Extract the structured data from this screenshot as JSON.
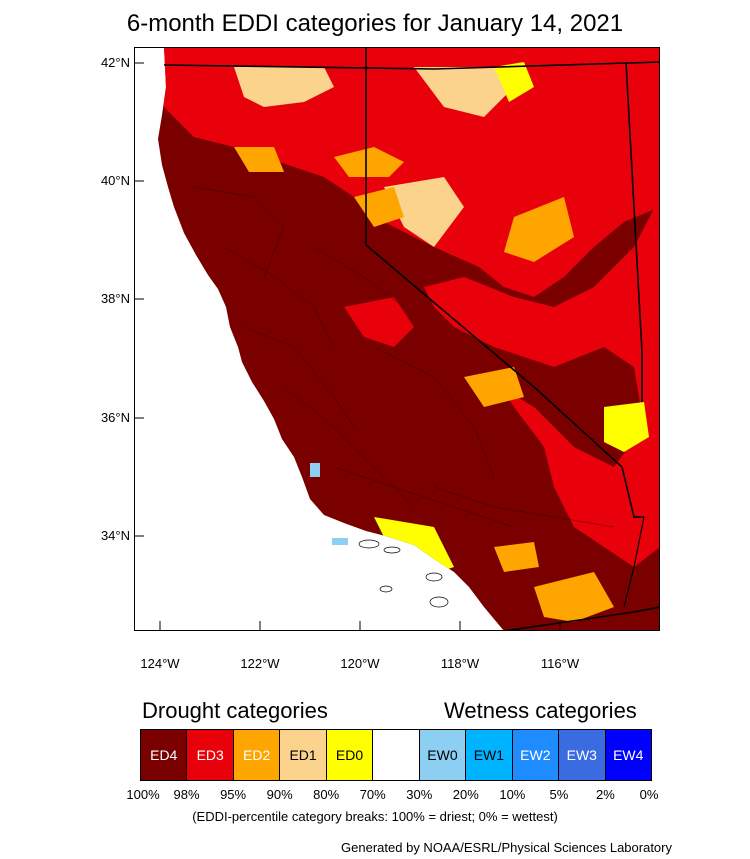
{
  "title": "6-month EDDI categories for January 14, 2021",
  "colors": {
    "ED4": "#7a0000",
    "ED3": "#e8000b",
    "ED2": "#ffa500",
    "ED1": "#fcd38c",
    "ED0": "#ffff00",
    "neutral": "#ffffff",
    "EW0": "#8ccff3",
    "EW1": "#00b3ff",
    "EW2": "#1e8cff",
    "EW3": "#3b6be0",
    "EW4": "#0000ff",
    "ocean": "#ffffff",
    "border": "#000000"
  },
  "map": {
    "lat_ticks": [
      "42°N",
      "40°N",
      "38°N",
      "36°N",
      "34°N"
    ],
    "lon_ticks": [
      "124°W",
      "122°W",
      "120°W",
      "118°W",
      "116°W"
    ]
  },
  "legend": {
    "drought_heading": "Drought categories",
    "wetness_heading": "Wetness categories",
    "categories": [
      {
        "label": "ED4",
        "color_key": "ED4",
        "text_color": "#ffffff"
      },
      {
        "label": "ED3",
        "color_key": "ED3",
        "text_color": "#ffffff"
      },
      {
        "label": "ED2",
        "color_key": "ED2",
        "text_color": "#ffffff"
      },
      {
        "label": "ED1",
        "color_key": "ED1",
        "text_color": "#000000"
      },
      {
        "label": "ED0",
        "color_key": "ED0",
        "text_color": "#000000"
      },
      {
        "label": "",
        "color_key": "neutral",
        "text_color": "#000000"
      },
      {
        "label": "EW0",
        "color_key": "EW0",
        "text_color": "#000000"
      },
      {
        "label": "EW1",
        "color_key": "EW1",
        "text_color": "#000000"
      },
      {
        "label": "EW2",
        "color_key": "EW2",
        "text_color": "#ffffff"
      },
      {
        "label": "EW3",
        "color_key": "EW3",
        "text_color": "#ffffff"
      },
      {
        "label": "EW4",
        "color_key": "EW4",
        "text_color": "#ffffff"
      }
    ],
    "breaks": [
      "100%",
      "98%",
      "95%",
      "90%",
      "80%",
      "70%",
      "30%",
      "20%",
      "10%",
      "5%",
      "2%",
      "0%"
    ],
    "note": "(EDDI-percentile category breaks: 100% = driest; 0% = wettest)"
  },
  "credit": "Generated by NOAA/ESRL/Physical Sciences Laboratory"
}
